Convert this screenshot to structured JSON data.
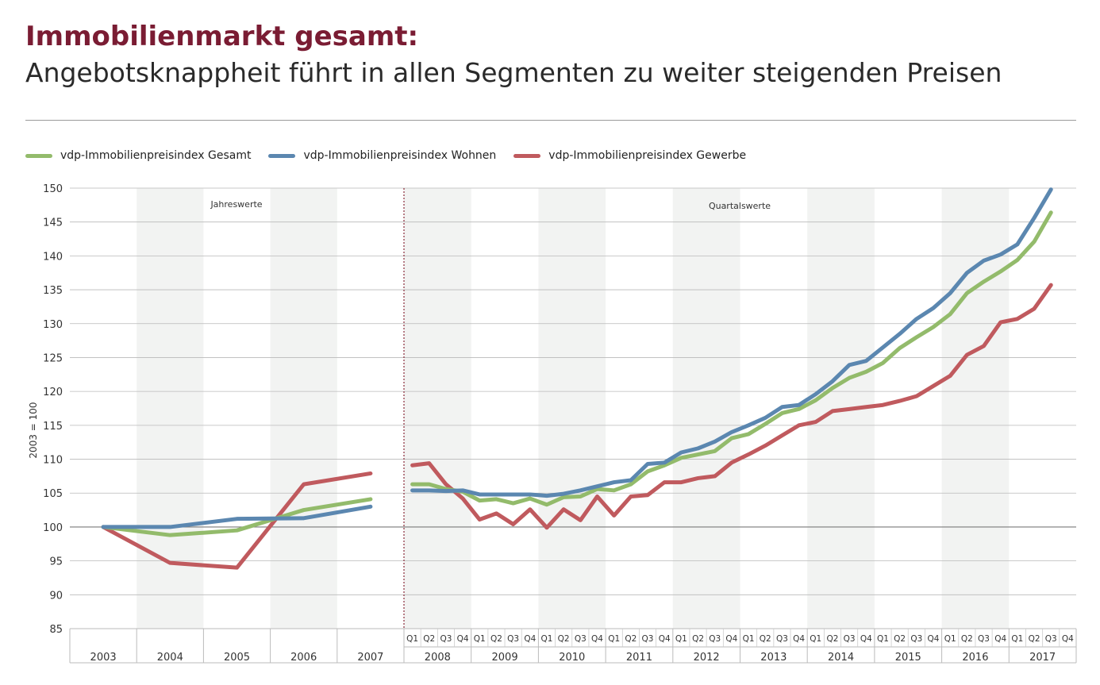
{
  "header": {
    "title": "Immobilienmarkt gesamt:",
    "subtitle": "Angebotsknappheit führt in allen Segmenten zu weiter steigenden Preisen"
  },
  "chart_data": {
    "type": "line",
    "ylabel": "2003 = 100",
    "ylim": [
      85,
      150
    ],
    "yticks": [
      85,
      90,
      95,
      100,
      105,
      110,
      115,
      120,
      125,
      130,
      135,
      140,
      145,
      150
    ],
    "grid": true,
    "legend_position": "top-left",
    "annual": {
      "label": "Jahreswerte",
      "x": [
        "2003",
        "2004",
        "2005",
        "2006",
        "2007"
      ]
    },
    "quarterly": {
      "label": "Quartalswerte",
      "years": [
        "2008",
        "2009",
        "2010",
        "2011",
        "2012",
        "2013",
        "2014",
        "2015",
        "2016",
        "2017"
      ],
      "quarters": [
        "Q1",
        "Q2",
        "Q3",
        "Q4"
      ]
    },
    "series": [
      {
        "name": "vdp-Immobilienpreisindex Gesamt",
        "color": "#93bb6b",
        "annual": [
          100,
          98.8,
          99.5,
          102.5,
          104.1
        ],
        "quarterly": [
          106.3,
          106.3,
          105.6,
          105.2,
          103.9,
          104.1,
          103.5,
          104.2,
          103.3,
          104.4,
          104.5,
          105.6,
          105.4,
          106.3,
          108.2,
          109.1,
          110.2,
          110.7,
          111.2,
          113.1,
          113.7,
          115.2,
          116.8,
          117.4,
          118.7,
          120.5,
          122.0,
          122.9,
          124.2,
          126.4,
          128.0,
          129.5,
          131.4,
          134.5,
          136.2,
          137.7,
          139.4,
          142.1,
          146.4
        ]
      },
      {
        "name": "vdp-Immobilienpreisindex Wohnen",
        "color": "#5b87b0",
        "annual": [
          100,
          100,
          101.2,
          101.3,
          103.0
        ],
        "quarterly": [
          105.4,
          105.4,
          105.3,
          105.4,
          104.8,
          104.8,
          104.8,
          104.8,
          104.6,
          104.9,
          105.4,
          106.0,
          106.6,
          106.9,
          109.3,
          109.5,
          111.0,
          111.6,
          112.6,
          114.0,
          115.0,
          116.1,
          117.7,
          118.0,
          119.6,
          121.5,
          123.9,
          124.5,
          126.5,
          128.5,
          130.7,
          132.3,
          134.5,
          137.5,
          139.3,
          140.2,
          141.7,
          145.6,
          149.8
        ]
      },
      {
        "name": "vdp-Immobilienpreisindex Gewerbe",
        "color": "#c05a5e",
        "annual": [
          100,
          94.7,
          94.0,
          106.3,
          107.9
        ],
        "quarterly": [
          109.1,
          109.4,
          106.3,
          104.2,
          101.1,
          102.0,
          100.4,
          102.6,
          99.9,
          102.6,
          101.0,
          104.5,
          101.7,
          104.5,
          104.7,
          106.6,
          106.6,
          107.2,
          107.5,
          109.5,
          110.7,
          112.0,
          113.5,
          115.0,
          115.5,
          117.1,
          117.4,
          117.7,
          118.0,
          118.6,
          119.3,
          120.8,
          122.3,
          125.4,
          126.7,
          130.2,
          130.7,
          132.2,
          135.7
        ]
      }
    ]
  }
}
